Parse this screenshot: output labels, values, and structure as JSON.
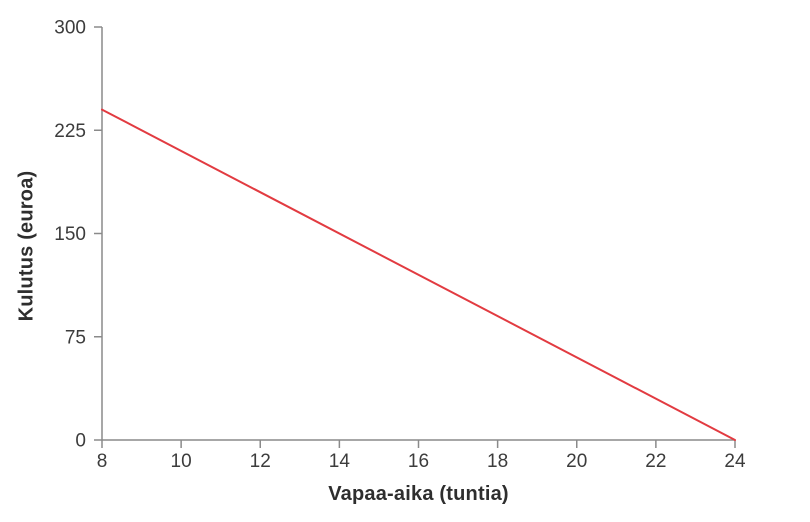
{
  "chart_data": {
    "type": "line",
    "title": "",
    "xlabel": "Vapaa-aika (tuntia)",
    "ylabel": "Kulutus (euroa)",
    "xlim": [
      8,
      24
    ],
    "ylim": [
      0,
      300
    ],
    "x_ticks": [
      8,
      10,
      12,
      14,
      16,
      18,
      20,
      22,
      24
    ],
    "y_ticks": [
      0,
      75,
      150,
      225,
      300
    ],
    "grid": false,
    "legend": "none",
    "series": [
      {
        "color": "#e23b41",
        "points": [
          [
            8,
            240
          ],
          [
            24,
            0
          ]
        ]
      }
    ]
  },
  "colors": {
    "background": "#ffffff",
    "axis": "#8a8a8a",
    "tick_label": "#3c3c3c",
    "axis_title": "#2e2e2e",
    "line": "#e23b41"
  }
}
